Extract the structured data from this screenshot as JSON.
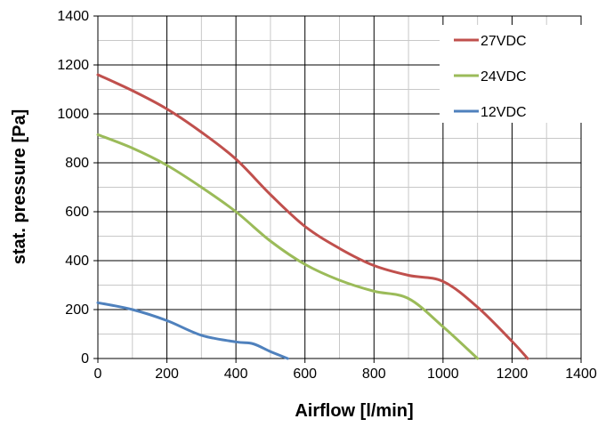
{
  "chart_data": {
    "type": "line",
    "title": "",
    "xlabel": "Airflow [l/min]",
    "ylabel": "stat. pressure [Pa]",
    "xlim": [
      0,
      1400
    ],
    "ylim": [
      0,
      1400
    ],
    "x_major_ticks": [
      0,
      200,
      400,
      600,
      800,
      1000,
      1200,
      1400
    ],
    "y_major_ticks": [
      0,
      200,
      400,
      600,
      800,
      1000,
      1200,
      1400
    ],
    "x_minor_step": 100,
    "y_minor_step": 100,
    "grid": true,
    "legend_position": "top-right",
    "series": [
      {
        "name": "27VDC",
        "color": "#c0504d",
        "x": [
          0,
          100,
          200,
          300,
          400,
          500,
          600,
          700,
          800,
          900,
          1000,
          1100,
          1200,
          1245
        ],
        "y": [
          1160,
          1095,
          1020,
          925,
          815,
          670,
          540,
          450,
          380,
          340,
          315,
          210,
          70,
          0
        ]
      },
      {
        "name": "24VDC",
        "color": "#9bbb59",
        "x": [
          0,
          100,
          200,
          300,
          400,
          500,
          600,
          700,
          800,
          900,
          1000,
          1100
        ],
        "y": [
          915,
          860,
          790,
          700,
          600,
          480,
          385,
          320,
          275,
          245,
          130,
          0
        ]
      },
      {
        "name": "12VDC",
        "color": "#4f81bd",
        "x": [
          0,
          100,
          200,
          300,
          400,
          450,
          500,
          550
        ],
        "y": [
          228,
          200,
          155,
          95,
          68,
          60,
          28,
          0
        ]
      }
    ]
  }
}
